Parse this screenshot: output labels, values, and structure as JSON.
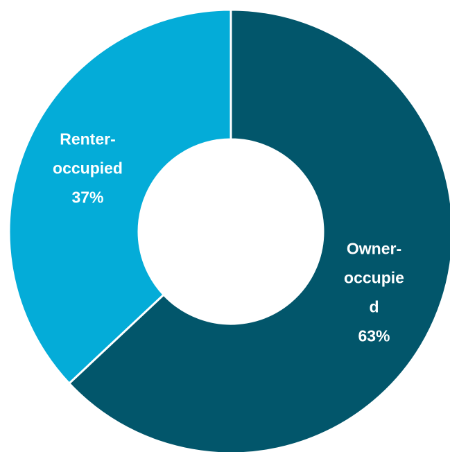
{
  "chart_data": {
    "type": "pie",
    "categories": [
      "Owner-occupied",
      "Renter-occupied"
    ],
    "values": [
      63,
      37
    ],
    "value_labels": [
      "63%",
      "37%"
    ],
    "colors": [
      "#02566b",
      "#04acd8"
    ]
  }
}
